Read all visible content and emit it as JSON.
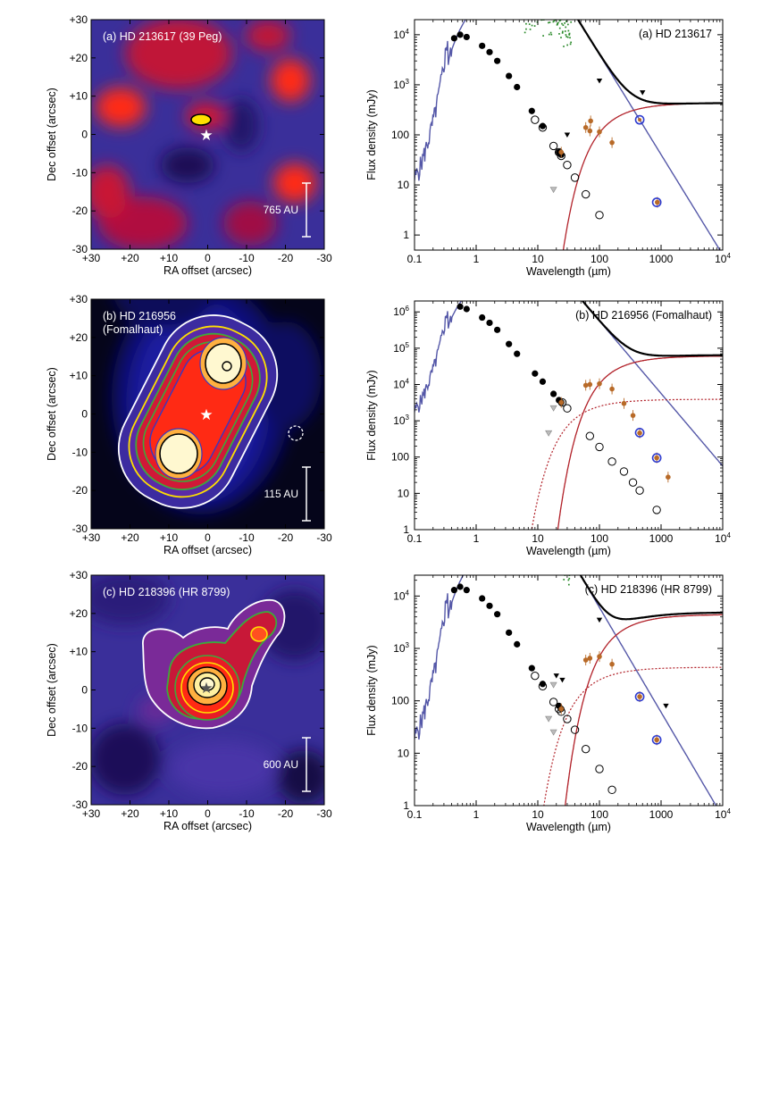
{
  "colors": {
    "image_low": "#05051a",
    "image_mid": "#3a2f9a",
    "image_warm": "#b01040",
    "image_hot": "#ff2a14",
    "image_peak": "#fff8d0",
    "photosphere": "#5558a8",
    "disk_model": "#b2222a",
    "total_model": "#000000",
    "spectrum": "#2a8a2a",
    "photometry_open": "#000000",
    "far_ir": "#b86a28",
    "submm": "#2f3ccf",
    "contour_white": "#ffffff",
    "contour_green": "#3caa3c",
    "contour_yellow": "#ffe000"
  },
  "images": [
    {
      "panel": "a",
      "label_line1": "(a) HD 213617 (39 Peg)",
      "label_line2": "",
      "scale_label": "765 AU",
      "xlabel": "RA offset (arcsec)",
      "ylabel": "Dec offset (arcsec)",
      "xticks": [
        "+30",
        "+20",
        "+10",
        "0",
        "-10",
        "-20",
        "-30"
      ],
      "yticks": [
        "+30",
        "+20",
        "+10",
        "0",
        "-10",
        "-20",
        "-30"
      ]
    },
    {
      "panel": "b",
      "label_line1": "(b) HD 216956",
      "label_line2": "(Fomalhaut)",
      "scale_label": "115 AU",
      "xlabel": "RA offset (arcsec)",
      "ylabel": "Dec offset (arcsec)",
      "xticks": [
        "+30",
        "+20",
        "+10",
        "0",
        "-10",
        "-20",
        "-30"
      ],
      "yticks": [
        "+30",
        "+20",
        "+10",
        "0",
        "-10",
        "-20",
        "-30"
      ]
    },
    {
      "panel": "c",
      "label_line1": "(c) HD 218396 (HR 8799)",
      "label_line2": "",
      "scale_label": "600 AU",
      "xlabel": "RA offset (arcsec)",
      "ylabel": "Dec offset (arcsec)",
      "xticks": [
        "+30",
        "+20",
        "+10",
        "0",
        "-10",
        "-20",
        "-30"
      ],
      "yticks": [
        "+30",
        "+20",
        "+10",
        "0",
        "-10",
        "-20",
        "-30"
      ]
    }
  ],
  "chart_data": [
    {
      "type": "line",
      "panel": "a",
      "title": "(a) HD 213617",
      "xlabel": "Wavelength (µm)",
      "ylabel": "Flux density (mJy)",
      "xscale": "log",
      "yscale": "log",
      "xlim": [
        0.1,
        10000
      ],
      "ylim": [
        0.5,
        20000
      ],
      "xticks": [
        {
          "v": 0.1,
          "t": "0.1"
        },
        {
          "v": 1,
          "t": "1"
        },
        {
          "v": 10,
          "t": "10"
        },
        {
          "v": 100,
          "t": "100"
        },
        {
          "v": 1000,
          "t": "1000"
        },
        {
          "v": 10000,
          "t": "10"
        }
      ],
      "yticks": [
        {
          "v": 1,
          "t": "1"
        },
        {
          "v": 10,
          "t": "10"
        },
        {
          "v": 100,
          "t": "100"
        },
        {
          "v": 1000,
          "t": "10"
        },
        {
          "v": 10000,
          "t": "10"
        }
      ],
      "star_peak": 10000,
      "disk": {
        "T": 62,
        "ref_wl": 100,
        "ref_flux": 110
      },
      "rj_wl": 20,
      "rj_flux": 30,
      "photometry": [
        [
          0.44,
          8500
        ],
        [
          0.55,
          10000
        ],
        [
          0.7,
          9000
        ],
        [
          1.25,
          6000
        ],
        [
          1.65,
          4500
        ],
        [
          2.2,
          3000
        ],
        [
          3.4,
          1500
        ],
        [
          4.6,
          900
        ],
        [
          8,
          300
        ],
        [
          12,
          150
        ],
        [
          22,
          45
        ],
        [
          24,
          40
        ]
      ],
      "photometry_open": [
        [
          9,
          200
        ],
        [
          12,
          140
        ],
        [
          18,
          60
        ],
        [
          22,
          45
        ],
        [
          24,
          38
        ],
        [
          30,
          25
        ],
        [
          40,
          14
        ],
        [
          60,
          6.5
        ],
        [
          100,
          2.5
        ]
      ],
      "far_ir": [
        [
          24,
          45
        ],
        [
          60,
          140
        ],
        [
          70,
          120
        ],
        [
          72,
          190
        ],
        [
          100,
          115
        ],
        [
          160,
          70
        ],
        [
          870,
          4.5
        ]
      ],
      "upper_limits_black": [
        [
          30,
          100
        ],
        [
          100,
          1200
        ],
        [
          500,
          700
        ]
      ],
      "upper_limits_grey": [
        [
          18,
          8
        ]
      ],
      "submm": [
        [
          450,
          200
        ],
        [
          850,
          4.5
        ]
      ],
      "spectrum": {
        "wl_range": [
          6,
          35
        ],
        "center_frac": 0.3,
        "scatter": 0.35,
        "seed": 11,
        "n": 140
      }
    },
    {
      "type": "line",
      "panel": "b",
      "title": "(b) HD 216956 (Fomalhaut)",
      "xlabel": "Wavelength (µm)",
      "ylabel": "Flux density (mJy)",
      "xscale": "log",
      "yscale": "log",
      "xlim": [
        0.1,
        10000
      ],
      "ylim": [
        1,
        2000000
      ],
      "xticks": [
        {
          "v": 0.1,
          "t": "0.1"
        },
        {
          "v": 1,
          "t": "1"
        },
        {
          "v": 10,
          "t": "10"
        },
        {
          "v": 100,
          "t": "100"
        },
        {
          "v": 1000,
          "t": "1000"
        },
        {
          "v": 10000,
          "t": "10"
        }
      ],
      "yticks": [
        {
          "v": 1,
          "t": "1"
        },
        {
          "v": 10,
          "t": "10"
        },
        {
          "v": 100,
          "t": "100"
        },
        {
          "v": 1000,
          "t": "10"
        },
        {
          "v": 10000,
          "t": "10"
        },
        {
          "v": 100000,
          "t": "10"
        },
        {
          "v": 1000000,
          "t": "10"
        }
      ],
      "star_peak": 1400000,
      "disk": {
        "T": 50,
        "ref_wl": 100,
        "ref_flux": 10500
      },
      "rj_wl": 20,
      "rj_flux": 2800,
      "warm": {
        "T": 170,
        "ref_wl": 30,
        "ref_flux": 700
      },
      "photometry": [
        [
          0.55,
          1400000
        ],
        [
          0.7,
          1200000
        ],
        [
          1.25,
          700000
        ],
        [
          1.65,
          500000
        ],
        [
          2.2,
          320000
        ],
        [
          3.4,
          130000
        ],
        [
          4.6,
          70000
        ],
        [
          9,
          20000
        ],
        [
          12,
          12000
        ],
        [
          18,
          5500
        ],
        [
          22,
          3700
        ],
        [
          24,
          3200
        ]
      ],
      "photometry_open": [
        [
          25,
          3200
        ],
        [
          30,
          2200
        ],
        [
          70,
          380
        ],
        [
          100,
          190
        ],
        [
          160,
          75
        ],
        [
          250,
          40
        ],
        [
          350,
          20
        ],
        [
          450,
          12
        ],
        [
          850,
          3.5
        ]
      ],
      "far_ir": [
        [
          24,
          3200
        ],
        [
          60,
          9500
        ],
        [
          70,
          10000
        ],
        [
          100,
          10500
        ],
        [
          160,
          7500
        ],
        [
          250,
          3000
        ],
        [
          350,
          1400
        ],
        [
          450,
          460
        ],
        [
          850,
          95
        ],
        [
          1300,
          28
        ]
      ],
      "upper_limits_black": [],
      "upper_limits_grey": [
        [
          18,
          2200
        ],
        [
          15,
          450
        ]
      ],
      "submm": [
        [
          450,
          470
        ],
        [
          850,
          95
        ]
      ],
      "spectrum": {
        "wl_range": [
          6,
          30
        ],
        "center_frac": 0.7,
        "scatter": 0.35,
        "seed": 7,
        "n": 120
      }
    },
    {
      "type": "line",
      "panel": "c",
      "title": "(c) HD 218396 (HR 8799)",
      "xlabel": "Wavelength (µm)",
      "ylabel": "Flux density (mJy)",
      "xscale": "log",
      "yscale": "log",
      "xlim": [
        0.1,
        10000
      ],
      "ylim": [
        1,
        25000
      ],
      "xticks": [
        {
          "v": 0.1,
          "t": "0.1"
        },
        {
          "v": 1,
          "t": "1"
        },
        {
          "v": 10,
          "t": "10"
        },
        {
          "v": 100,
          "t": "100"
        },
        {
          "v": 1000,
          "t": "1000"
        },
        {
          "v": 10000,
          "t": "10"
        }
      ],
      "yticks": [
        {
          "v": 1,
          "t": "1"
        },
        {
          "v": 10,
          "t": "10"
        },
        {
          "v": 100,
          "t": "100"
        },
        {
          "v": 1000,
          "t": "10"
        },
        {
          "v": 10000,
          "t": "10"
        }
      ],
      "star_peak": 15000,
      "disk": {
        "T": 48,
        "ref_wl": 100,
        "ref_flux": 700
      },
      "rj_wl": 20,
      "rj_flux": 45,
      "warm": {
        "T": 140,
        "ref_wl": 25,
        "ref_flux": 30
      },
      "photometry": [
        [
          0.44,
          13000
        ],
        [
          0.55,
          15000
        ],
        [
          0.7,
          13000
        ],
        [
          1.25,
          9000
        ],
        [
          1.65,
          6500
        ],
        [
          2.2,
          4500
        ],
        [
          3.4,
          2000
        ],
        [
          4.6,
          1200
        ],
        [
          8,
          420
        ],
        [
          12,
          210
        ],
        [
          22,
          80
        ],
        [
          24,
          70
        ]
      ],
      "photometry_open": [
        [
          9,
          300
        ],
        [
          12,
          190
        ],
        [
          18,
          95
        ],
        [
          22,
          70
        ],
        [
          24,
          62
        ],
        [
          30,
          45
        ],
        [
          40,
          28
        ],
        [
          60,
          12
        ],
        [
          100,
          5
        ],
        [
          160,
          2
        ]
      ],
      "far_ir": [
        [
          24,
          70
        ],
        [
          60,
          600
        ],
        [
          70,
          650
        ],
        [
          100,
          700
        ],
        [
          160,
          500
        ],
        [
          450,
          120
        ],
        [
          850,
          18
        ]
      ],
      "upper_limits_black": [
        [
          20,
          300
        ],
        [
          25,
          250
        ],
        [
          100,
          3500
        ],
        [
          1200,
          80
        ]
      ],
      "upper_limits_grey": [
        [
          18,
          200
        ],
        [
          15,
          45
        ],
        [
          18,
          25
        ]
      ],
      "submm": [
        [
          450,
          120
        ],
        [
          850,
          18
        ]
      ],
      "spectrum": {
        "wl_range": [
          6,
          35
        ],
        "center_frac": 0.6,
        "scatter": 0.3,
        "seed": 3,
        "n": 160
      }
    }
  ]
}
